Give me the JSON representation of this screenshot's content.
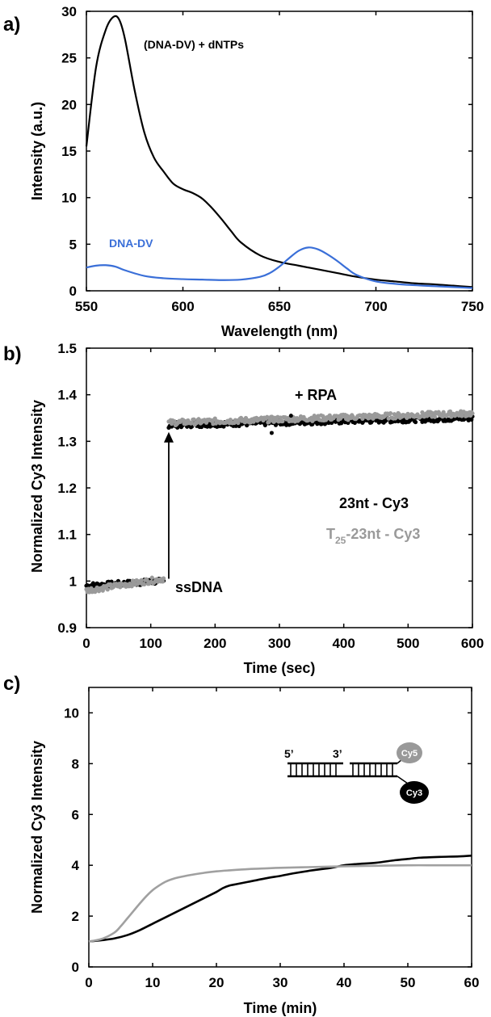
{
  "panels": {
    "a": {
      "label": "a)"
    },
    "b": {
      "label": "b)"
    },
    "c": {
      "label": "c)"
    }
  },
  "chart_data": [
    {
      "type": "line",
      "panel": "a",
      "xlabel": "Wavelength (nm)",
      "ylabel": "Intensity (a.u.)",
      "xlim": [
        550,
        750
      ],
      "ylim": [
        0,
        30
      ],
      "xticks": [
        550,
        600,
        650,
        700,
        750
      ],
      "yticks": [
        0,
        5,
        10,
        15,
        20,
        25,
        30
      ],
      "series": [
        {
          "name": "(DNA-DV) + dNTPs",
          "color": "#000000",
          "x": [
            550,
            555,
            560,
            564,
            567,
            570,
            575,
            580,
            585,
            590,
            595,
            600,
            605,
            610,
            615,
            620,
            625,
            630,
            640,
            650,
            660,
            670,
            680,
            690,
            700,
            710,
            720,
            730,
            740,
            750
          ],
          "y": [
            15.5,
            24,
            28,
            29.4,
            29.1,
            27,
            21.5,
            17,
            14.3,
            12.8,
            11.5,
            10.9,
            10.5,
            9.9,
            8.9,
            7.7,
            6.4,
            5.2,
            3.8,
            3.1,
            2.7,
            2.3,
            1.9,
            1.5,
            1.2,
            1.0,
            0.8,
            0.7,
            0.55,
            0.4
          ]
        },
        {
          "name": "DNA-DV",
          "color": "#3a6fd8",
          "x": [
            550,
            555,
            560,
            565,
            570,
            580,
            590,
            600,
            610,
            620,
            630,
            640,
            645,
            650,
            655,
            660,
            665,
            670,
            675,
            680,
            685,
            690,
            700,
            710,
            720,
            730,
            740,
            750
          ],
          "y": [
            2.5,
            2.7,
            2.75,
            2.6,
            2.2,
            1.6,
            1.35,
            1.25,
            1.2,
            1.15,
            1.2,
            1.5,
            1.9,
            2.6,
            3.5,
            4.3,
            4.65,
            4.45,
            3.9,
            3.2,
            2.4,
            1.7,
            1.0,
            0.75,
            0.6,
            0.5,
            0.4,
            0.3
          ]
        }
      ],
      "annotations": [
        "(DNA-DV) + dNTPs",
        "DNA-DV"
      ]
    },
    {
      "type": "scatter",
      "panel": "b",
      "xlabel": "Time (sec)",
      "ylabel": "Normalized Cy3 Intensity",
      "xlim": [
        0,
        600
      ],
      "ylim": [
        0.9,
        1.5
      ],
      "xticks": [
        0,
        100,
        200,
        300,
        400,
        500,
        600
      ],
      "ytick_labels": [
        "0.9",
        "1",
        "1.1",
        "1.2",
        "1.3",
        "1.4",
        "1.5"
      ],
      "series": [
        {
          "name": "23nt - Cy3",
          "color": "#000000",
          "segments": [
            {
              "x": [
                0,
                120
              ],
              "y": [
                0.99,
                1.0
              ]
            },
            {
              "x": [
                128,
                600
              ],
              "y": [
                1.335,
                1.35
              ]
            }
          ]
        },
        {
          "name": "T25-23nt - Cy3",
          "color": "#9a9a9a",
          "segments": [
            {
              "x": [
                0,
                120
              ],
              "y": [
                0.98,
                1.005
              ]
            },
            {
              "x": [
                128,
                600
              ],
              "y": [
                1.34,
                1.36
              ]
            }
          ]
        }
      ],
      "arrow": {
        "x": 128,
        "y_from": 1.005,
        "y_to": 1.32
      },
      "annotations": {
        "ssdna": "ssDNA",
        "rpa": "+ RPA",
        "legend_black": "23nt - Cy3",
        "legend_grey_prefix": "T",
        "legend_grey_sub": "25",
        "legend_grey_suffix": "-23nt - Cy3"
      }
    },
    {
      "type": "line",
      "panel": "c",
      "xlabel": "Time (min)",
      "ylabel": "Normalized Cy3 Intensity",
      "xlim": [
        0,
        60
      ],
      "ylim": [
        0,
        11
      ],
      "xticks": [
        0,
        10,
        20,
        30,
        40,
        50,
        60
      ],
      "yticks": [
        0,
        2,
        4,
        6,
        8,
        10
      ],
      "series": [
        {
          "color": "#000000",
          "x": [
            0,
            2,
            4,
            6,
            8,
            10,
            12,
            14,
            16,
            18,
            20,
            21,
            22,
            23,
            25,
            28,
            30,
            32,
            35,
            38,
            40,
            42,
            45,
            48,
            50,
            52,
            55,
            58,
            60
          ],
          "y": [
            1.0,
            1.05,
            1.12,
            1.25,
            1.45,
            1.7,
            1.95,
            2.2,
            2.45,
            2.7,
            2.95,
            3.1,
            3.2,
            3.25,
            3.35,
            3.5,
            3.58,
            3.68,
            3.8,
            3.9,
            4.0,
            4.05,
            4.1,
            4.2,
            4.25,
            4.3,
            4.33,
            4.35,
            4.38
          ]
        },
        {
          "color": "#a0a0a0",
          "x": [
            0,
            2,
            4,
            5,
            6,
            7,
            8,
            9,
            10,
            11,
            12,
            13,
            14,
            16,
            18,
            20,
            22,
            25,
            28,
            30,
            35,
            40,
            45,
            50,
            55,
            60
          ],
          "y": [
            1.0,
            1.1,
            1.35,
            1.6,
            1.9,
            2.2,
            2.5,
            2.78,
            3.02,
            3.2,
            3.35,
            3.45,
            3.52,
            3.62,
            3.7,
            3.76,
            3.8,
            3.85,
            3.88,
            3.9,
            3.93,
            3.96,
            3.98,
            4.0,
            4.0,
            4.0
          ]
        }
      ],
      "schematic": {
        "five_prime": "5’",
        "three_prime": "3’",
        "cy5_label": "Cy5",
        "cy3_label": "Cy3",
        "cy5_color": "#999999",
        "cy3_color": "#000000"
      }
    }
  ]
}
